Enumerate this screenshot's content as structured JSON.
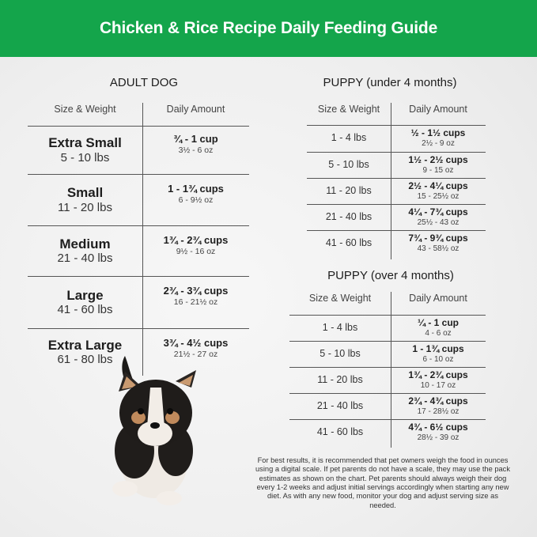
{
  "header": {
    "title": "Chicken & Rice Recipe Daily Feeding Guide",
    "bg_color": "#14a54b"
  },
  "adult": {
    "title": "ADULT DOG",
    "col1": "Size & Weight",
    "col2": "Daily Amount",
    "rows": [
      {
        "size": "Extra Small",
        "weight": "5 - 10 lbs",
        "cups": "¾ - 1 cup",
        "oz": "3½ - 6 oz"
      },
      {
        "size": "Small",
        "weight": "11 - 20 lbs",
        "cups": "1 - 1¾ cups",
        "oz": "6 - 9½ oz"
      },
      {
        "size": "Medium",
        "weight": "21 - 40 lbs",
        "cups": "1¾ - 2¾ cups",
        "oz": "9½ - 16 oz"
      },
      {
        "size": "Large",
        "weight": "41 - 60 lbs",
        "cups": "2¾ - 3¾ cups",
        "oz": "16 - 21½ oz"
      },
      {
        "size": "Extra Large",
        "weight": "61 - 80 lbs",
        "cups": "3¾ - 4½ cups",
        "oz": "21½ - 27 oz"
      }
    ]
  },
  "puppy_under": {
    "title": "PUPPY (under 4 months)",
    "col1": "Size & Weight",
    "col2": "Daily Amount",
    "rows": [
      {
        "weight": "1 - 4 lbs",
        "cups": "½ - 1½ cups",
        "oz": "2½ - 9 oz"
      },
      {
        "weight": "5 - 10 lbs",
        "cups": "1½ - 2½ cups",
        "oz": "9 - 15 oz"
      },
      {
        "weight": "11 - 20 lbs",
        "cups": "2½ - 4¼ cups",
        "oz": "15 - 25½ oz"
      },
      {
        "weight": "21 - 40 lbs",
        "cups": "4¼ - 7¾ cups",
        "oz": "25½ - 43 oz"
      },
      {
        "weight": "41 - 60 lbs",
        "cups": "7¾ - 9¾ cups",
        "oz": "43 - 58½ oz"
      }
    ]
  },
  "puppy_over": {
    "title": "PUPPY (over 4 months)",
    "col1": "Size & Weight",
    "col2": "Daily Amount",
    "rows": [
      {
        "weight": "1 - 4 lbs",
        "cups": "¼ - 1 cup",
        "oz": "4 - 6 oz"
      },
      {
        "weight": "5 - 10 lbs",
        "cups": "1 - 1¾ cups",
        "oz": "6 - 10 oz"
      },
      {
        "weight": "11 - 20 lbs",
        "cups": "1¾ - 2¾ cups",
        "oz": "10 - 17 oz"
      },
      {
        "weight": "21 - 40 lbs",
        "cups": "2¾ - 4¾ cups",
        "oz": "17 - 28½ oz"
      },
      {
        "weight": "41 - 60 lbs",
        "cups": "4¾ - 6½ cups",
        "oz": "28½ - 39 oz"
      }
    ]
  },
  "note": "For best results, it is recommended that pet owners weigh the food in ounces using a digital scale. If pet parents do not have a scale, they may use the pack estimates as shown on the chart. Pet parents should always weigh their dog every 1-2 weeks and adjust initial servings accordingly when starting any new diet. As with any new food, monitor your dog and adjust serving size as needed."
}
